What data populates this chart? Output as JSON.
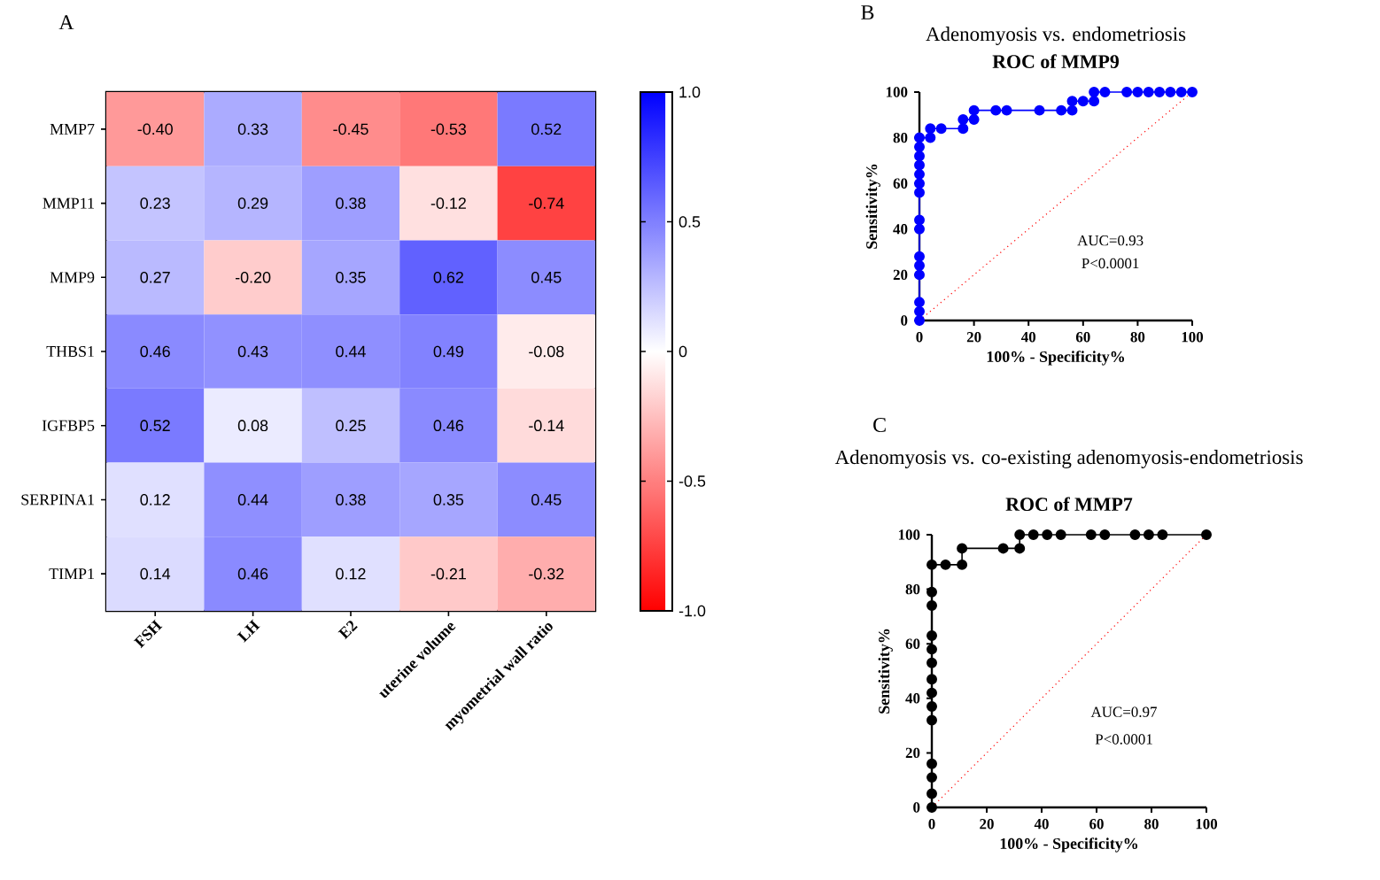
{
  "chart_data": [
    {
      "type": "heatmap",
      "annotations": [
        "A"
      ],
      "categories": [
        "FSH",
        "LH",
        "E2",
        "uterine volume",
        "myometrial wall ratio"
      ],
      "y_categories": [
        "MMP7",
        "MMP11",
        "MMP9",
        "THBS1",
        "IGFBP5",
        "SERPINA1",
        "TIMP1"
      ],
      "cells": [
        [
          -0.4,
          0.33,
          -0.45,
          -0.53,
          0.52
        ],
        [
          0.23,
          0.29,
          0.38,
          -0.12,
          -0.74
        ],
        [
          0.27,
          -0.2,
          0.35,
          0.62,
          0.45
        ],
        [
          0.46,
          0.43,
          0.44,
          0.49,
          -0.08
        ],
        [
          0.52,
          0.08,
          0.25,
          0.46,
          -0.14
        ],
        [
          0.12,
          0.44,
          0.38,
          0.35,
          0.45
        ],
        [
          0.14,
          0.46,
          0.12,
          -0.21,
          -0.32
        ]
      ],
      "cell_labels": [
        [
          "-0.40",
          "0.33",
          "-0.45",
          "-0.53",
          "0.52"
        ],
        [
          "0.23",
          "0.29",
          "0.38",
          "-0.12",
          "-0.74"
        ],
        [
          "0.27",
          "-0.20",
          "0.35",
          "0.62",
          "0.45"
        ],
        [
          "0.46",
          "0.43",
          "0.44",
          "0.49",
          "-0.08"
        ],
        [
          "0.52",
          "0.08",
          "0.25",
          "0.46",
          "-0.14"
        ],
        [
          "0.12",
          "0.44",
          "0.38",
          "0.35",
          "0.45"
        ],
        [
          "0.14",
          "0.46",
          "0.12",
          "-0.21",
          "-0.32"
        ]
      ],
      "clim": [
        -1,
        1
      ],
      "cticks": [
        {
          "value": 1,
          "label": "1.0"
        },
        {
          "value": 0.5,
          "label": "0.5"
        },
        0,
        {
          "value": -0.5,
          "label": "-0.5"
        },
        {
          "value": -1,
          "label": "-1.0"
        }
      ]
    },
    {
      "type": "line",
      "title": "ROC of MMP9",
      "subtitle": "Adenomyosis vs. endometriosis",
      "annotations": [
        "B",
        "AUC=0.93",
        "P<0.0001"
      ],
      "xlabel": "100% - Specificity%",
      "ylabel": "Sensitivity%",
      "xlim": [
        0,
        100
      ],
      "ylim": [
        0,
        100
      ],
      "xticks": [
        0,
        20,
        40,
        60,
        80,
        100
      ],
      "yticks": [
        0,
        20,
        40,
        60,
        80,
        100
      ],
      "marker": "circle",
      "series": [
        {
          "color": "#0000ff",
          "x": [
            0,
            0,
            0,
            0,
            0,
            0,
            0,
            0,
            0,
            0,
            0,
            0,
            0,
            0,
            0,
            4,
            4,
            8,
            16,
            16,
            20,
            20,
            28,
            32,
            44,
            52,
            56,
            56,
            60,
            64,
            64,
            68,
            76,
            80,
            84,
            88,
            92,
            96,
            100
          ],
          "values": [
            0,
            4,
            8,
            20,
            24,
            28,
            40,
            44,
            56,
            60,
            64,
            68,
            72,
            76,
            80,
            80,
            84,
            84,
            84,
            88,
            88,
            92,
            92,
            92,
            92,
            92,
            92,
            96,
            96,
            96,
            100,
            100,
            100,
            100,
            100,
            100,
            100,
            100,
            100
          ]
        },
        {
          "type": "line",
          "color": "#ff0000",
          "marker": "none",
          "line_style": "dotted",
          "x": [
            0,
            100
          ],
          "values": [
            0,
            100
          ]
        }
      ]
    },
    {
      "type": "line",
      "title": "ROC of MMP7",
      "subtitle": "Adenomyosis vs. co-existing adenomyosis-endometriosis",
      "annotations": [
        "C",
        "AUC=0.97",
        "P<0.0001"
      ],
      "xlabel": "100% - Specificity%",
      "ylabel": "Sensitivity%",
      "xlim": [
        0,
        100
      ],
      "ylim": [
        0,
        100
      ],
      "xticks": [
        0,
        20,
        40,
        60,
        80,
        100
      ],
      "yticks": [
        0,
        20,
        40,
        60,
        80,
        100
      ],
      "marker": "circle",
      "series": [
        {
          "color": "#000000",
          "x": [
            0,
            0,
            0,
            0,
            0,
            0,
            0,
            0,
            0,
            0,
            0,
            0,
            0,
            0,
            5,
            11,
            11,
            26,
            32,
            32,
            37,
            42,
            47,
            58,
            63,
            74,
            79,
            84,
            100
          ],
          "values": [
            0,
            5,
            11,
            16,
            32,
            37,
            42,
            47,
            53,
            58,
            63,
            74,
            79,
            89,
            89,
            89,
            95,
            95,
            95,
            100,
            100,
            100,
            100,
            100,
            100,
            100,
            100,
            100,
            100
          ]
        },
        {
          "type": "line",
          "color": "#ff0000",
          "marker": "none",
          "line_style": "dotted",
          "x": [
            0,
            100
          ],
          "values": [
            0,
            100
          ]
        }
      ]
    }
  ]
}
